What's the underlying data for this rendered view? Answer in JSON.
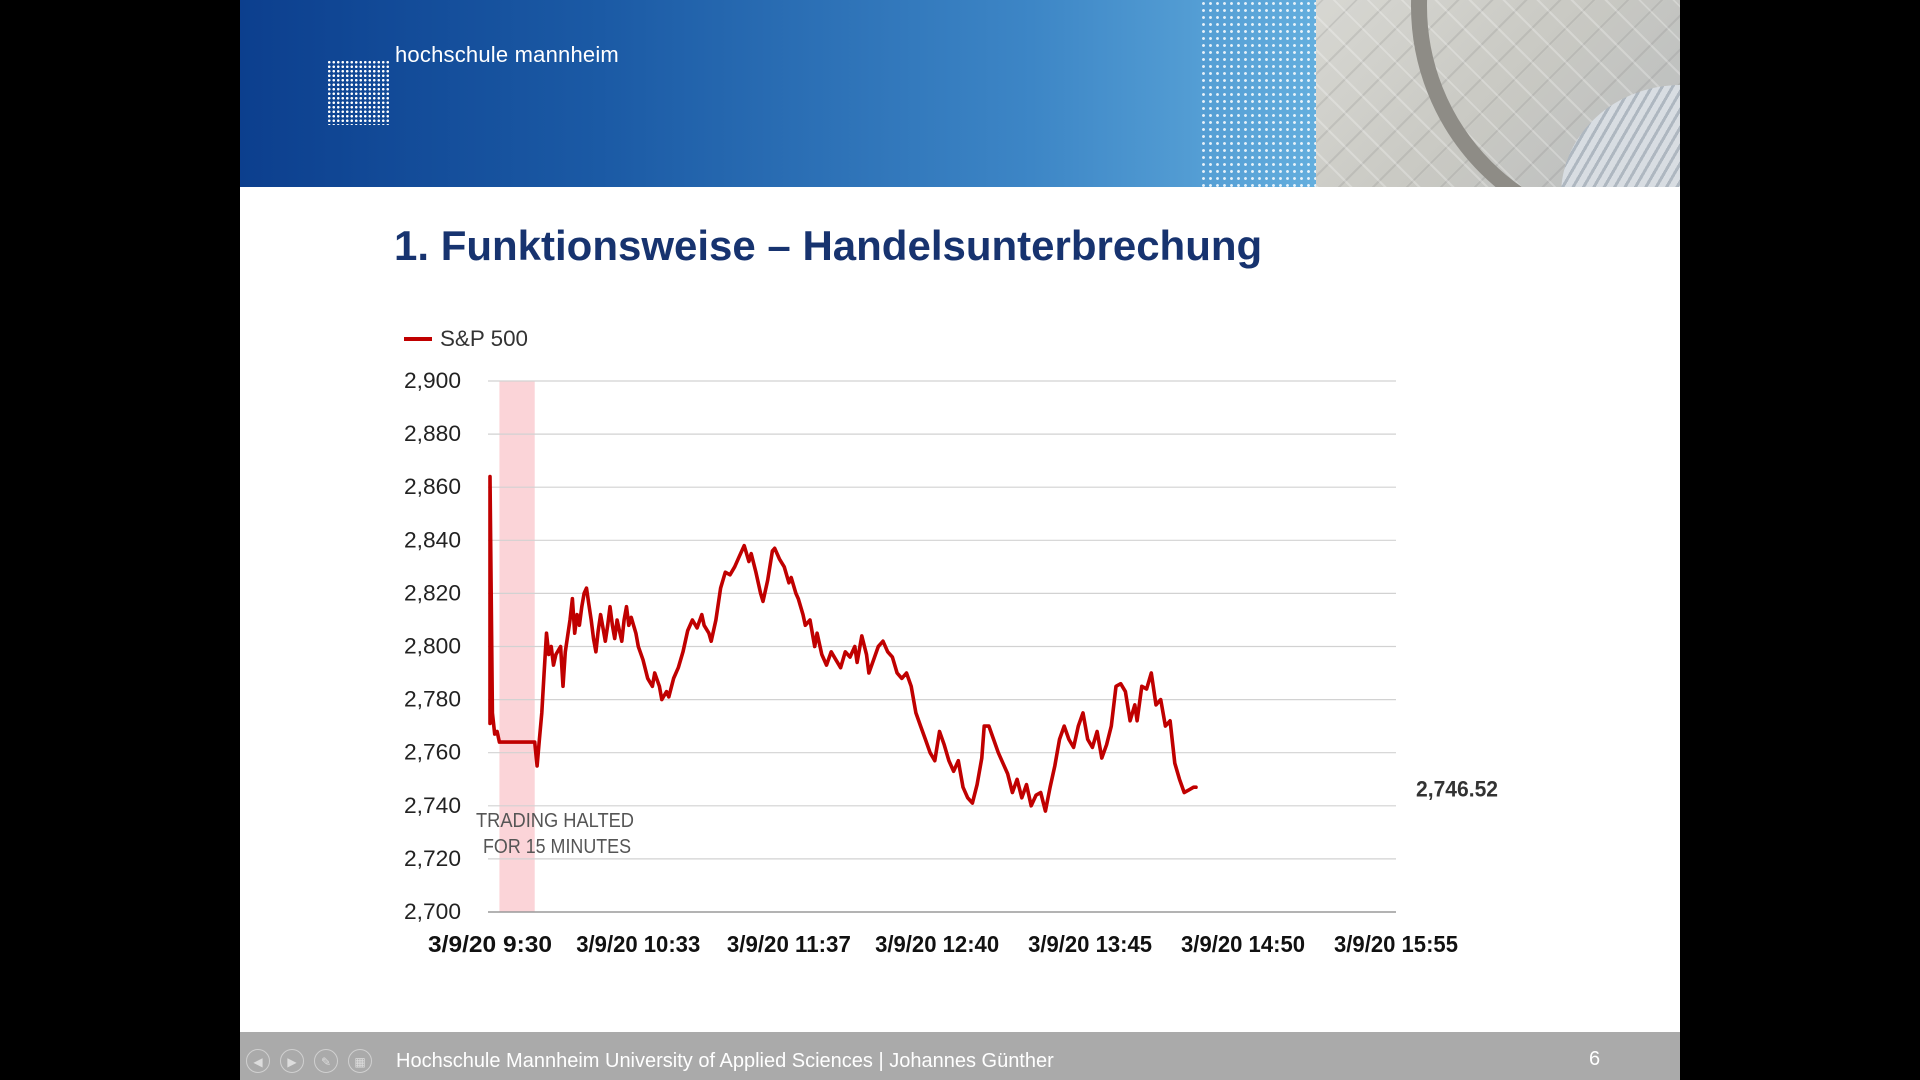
{
  "header": {
    "logo_text": "hochschule mannheim"
  },
  "slide": {
    "title": "1. Funktionsweise – Handelsunterbrechung",
    "number": "6"
  },
  "footer": {
    "text": "Hochschule Mannheim University of Applied Sciences | Johannes Günther"
  },
  "colors": {
    "series": "#c00000",
    "halt_band": "#fbd4d8",
    "title": "#17336f",
    "header_start": "#0c3f8e",
    "footer_bg": "#aaaaaa"
  },
  "nav_icons": [
    "prev-icon",
    "next-icon",
    "pen-icon",
    "slides-icon"
  ],
  "chart_data": {
    "type": "line",
    "title": "",
    "xlabel": "",
    "ylabel": "",
    "ylim": [
      2700,
      2900
    ],
    "y_ticks": [
      2900,
      2880,
      2860,
      2840,
      2820,
      2800,
      2780,
      2760,
      2740,
      2720,
      2700
    ],
    "y_tick_labels": [
      "2,900",
      "2,880",
      "2,860",
      "2,840",
      "2,820",
      "2,800",
      "2,780",
      "2,760",
      "2,740",
      "2,720",
      "2,700"
    ],
    "x_tick_labels": [
      "3/9/20 9:30",
      "3/9/20 10:33",
      "3/9/20 11:37",
      "3/9/20 12:40",
      "3/9/20 13:45",
      "3/9/20 14:50",
      "3/9/20 15:55"
    ],
    "x_ticks_minutes": [
      "9:30",
      "10:33",
      "11:37",
      "12:40",
      "13:45",
      "14:50",
      "15:55"
    ],
    "grid": true,
    "legend": {
      "position": "top-left",
      "entries": [
        "S&P 500"
      ]
    },
    "halt_band": {
      "start": "9:34",
      "end": "9:49",
      "label_line1": "TRADING HALTED",
      "label_line2": "FOR 15 MINUTES"
    },
    "end_label": "2,746.52",
    "series": [
      {
        "name": "S&P 500",
        "points": [
          [
            "9:30",
            2771
          ],
          [
            "9:30",
            2864
          ],
          [
            "9:31",
            2775
          ],
          [
            "9:32",
            2767
          ],
          [
            "9:33",
            2768
          ],
          [
            "9:34",
            2764
          ],
          [
            "9:49",
            2764
          ],
          [
            "9:50",
            2755
          ],
          [
            "9:51",
            2765
          ],
          [
            "9:52",
            2775
          ],
          [
            "9:53",
            2790
          ],
          [
            "9:54",
            2805
          ],
          [
            "9:55",
            2797
          ],
          [
            "9:56",
            2800
          ],
          [
            "9:57",
            2793
          ],
          [
            "9:58",
            2797
          ],
          [
            "10:00",
            2800
          ],
          [
            "10:01",
            2785
          ],
          [
            "10:02",
            2798
          ],
          [
            "10:04",
            2810
          ],
          [
            "10:05",
            2818
          ],
          [
            "10:06",
            2805
          ],
          [
            "10:07",
            2812
          ],
          [
            "10:08",
            2808
          ],
          [
            "10:09",
            2815
          ],
          [
            "10:10",
            2820
          ],
          [
            "10:11",
            2822
          ],
          [
            "10:12",
            2816
          ],
          [
            "10:13",
            2810
          ],
          [
            "10:14",
            2803
          ],
          [
            "10:15",
            2798
          ],
          [
            "10:16",
            2806
          ],
          [
            "10:17",
            2812
          ],
          [
            "10:18",
            2807
          ],
          [
            "10:19",
            2802
          ],
          [
            "10:20",
            2808
          ],
          [
            "10:21",
            2815
          ],
          [
            "10:22",
            2808
          ],
          [
            "10:23",
            2803
          ],
          [
            "10:24",
            2810
          ],
          [
            "10:25",
            2806
          ],
          [
            "10:26",
            2802
          ],
          [
            "10:27",
            2810
          ],
          [
            "10:28",
            2815
          ],
          [
            "10:29",
            2808
          ],
          [
            "10:30",
            2811
          ],
          [
            "10:32",
            2805
          ],
          [
            "10:33",
            2800
          ],
          [
            "10:35",
            2795
          ],
          [
            "10:37",
            2788
          ],
          [
            "10:39",
            2785
          ],
          [
            "10:40",
            2790
          ],
          [
            "10:42",
            2785
          ],
          [
            "10:43",
            2780
          ],
          [
            "10:45",
            2783
          ],
          [
            "10:46",
            2781
          ],
          [
            "10:48",
            2788
          ],
          [
            "10:50",
            2792
          ],
          [
            "10:52",
            2798
          ],
          [
            "10:54",
            2806
          ],
          [
            "10:56",
            2810
          ],
          [
            "10:58",
            2807
          ],
          [
            "11:00",
            2812
          ],
          [
            "11:01",
            2808
          ],
          [
            "11:03",
            2805
          ],
          [
            "11:04",
            2802
          ],
          [
            "11:06",
            2810
          ],
          [
            "11:08",
            2822
          ],
          [
            "11:10",
            2828
          ],
          [
            "11:12",
            2827
          ],
          [
            "11:14",
            2830
          ],
          [
            "11:16",
            2834
          ],
          [
            "11:18",
            2838
          ],
          [
            "11:20",
            2832
          ],
          [
            "11:21",
            2835
          ],
          [
            "11:23",
            2828
          ],
          [
            "11:25",
            2820
          ],
          [
            "11:26",
            2817
          ],
          [
            "11:28",
            2825
          ],
          [
            "11:30",
            2836
          ],
          [
            "11:31",
            2837
          ],
          [
            "11:33",
            2833
          ],
          [
            "11:35",
            2830
          ],
          [
            "11:37",
            2824
          ],
          [
            "11:38",
            2826
          ],
          [
            "11:40",
            2820
          ],
          [
            "11:41",
            2818
          ],
          [
            "11:43",
            2812
          ],
          [
            "11:44",
            2808
          ],
          [
            "11:46",
            2810
          ],
          [
            "11:48",
            2800
          ],
          [
            "11:49",
            2805
          ],
          [
            "11:51",
            2797
          ],
          [
            "11:53",
            2793
          ],
          [
            "11:55",
            2798
          ],
          [
            "11:57",
            2795
          ],
          [
            "11:59",
            2792
          ],
          [
            "12:01",
            2798
          ],
          [
            "12:03",
            2796
          ],
          [
            "12:05",
            2800
          ],
          [
            "12:06",
            2794
          ],
          [
            "12:08",
            2804
          ],
          [
            "12:10",
            2797
          ],
          [
            "12:11",
            2790
          ],
          [
            "12:13",
            2795
          ],
          [
            "12:15",
            2800
          ],
          [
            "12:17",
            2802
          ],
          [
            "12:19",
            2798
          ],
          [
            "12:21",
            2796
          ],
          [
            "12:23",
            2790
          ],
          [
            "12:25",
            2788
          ],
          [
            "12:27",
            2790
          ],
          [
            "12:29",
            2785
          ],
          [
            "12:31",
            2775
          ],
          [
            "12:33",
            2770
          ],
          [
            "12:35",
            2765
          ],
          [
            "12:37",
            2760
          ],
          [
            "12:39",
            2757
          ],
          [
            "12:41",
            2768
          ],
          [
            "12:43",
            2763
          ],
          [
            "12:45",
            2757
          ],
          [
            "12:47",
            2753
          ],
          [
            "12:49",
            2757
          ],
          [
            "12:51",
            2747
          ],
          [
            "12:53",
            2743
          ],
          [
            "12:55",
            2741
          ],
          [
            "12:57",
            2748
          ],
          [
            "12:59",
            2758
          ],
          [
            "13:00",
            2770
          ],
          [
            "13:02",
            2770
          ],
          [
            "13:04",
            2765
          ],
          [
            "13:06",
            2760
          ],
          [
            "13:08",
            2756
          ],
          [
            "13:10",
            2752
          ],
          [
            "13:12",
            2745
          ],
          [
            "13:14",
            2750
          ],
          [
            "13:16",
            2743
          ],
          [
            "13:18",
            2748
          ],
          [
            "13:20",
            2740
          ],
          [
            "13:22",
            2744
          ],
          [
            "13:24",
            2745
          ],
          [
            "13:26",
            2738
          ],
          [
            "13:28",
            2747
          ],
          [
            "13:30",
            2755
          ],
          [
            "13:32",
            2765
          ],
          [
            "13:34",
            2770
          ],
          [
            "13:36",
            2765
          ],
          [
            "13:38",
            2762
          ],
          [
            "13:40",
            2770
          ],
          [
            "13:42",
            2775
          ],
          [
            "13:44",
            2765
          ],
          [
            "13:46",
            2762
          ],
          [
            "13:48",
            2768
          ],
          [
            "13:50",
            2758
          ],
          [
            "13:52",
            2763
          ],
          [
            "13:54",
            2770
          ],
          [
            "13:56",
            2785
          ],
          [
            "13:58",
            2786
          ],
          [
            "14:00",
            2783
          ],
          [
            "14:02",
            2772
          ],
          [
            "14:04",
            2778
          ],
          [
            "14:05",
            2772
          ],
          [
            "14:07",
            2785
          ],
          [
            "14:09",
            2784
          ],
          [
            "14:11",
            2790
          ],
          [
            "14:13",
            2778
          ],
          [
            "14:15",
            2780
          ],
          [
            "14:17",
            2770
          ],
          [
            "14:19",
            2772
          ],
          [
            "14:21",
            2756
          ],
          [
            "14:23",
            2750
          ],
          [
            "14:25",
            2745
          ],
          [
            "14:27",
            2746
          ],
          [
            "14:29",
            2747
          ],
          [
            "14:30",
            2747
          ]
        ]
      }
    ]
  }
}
